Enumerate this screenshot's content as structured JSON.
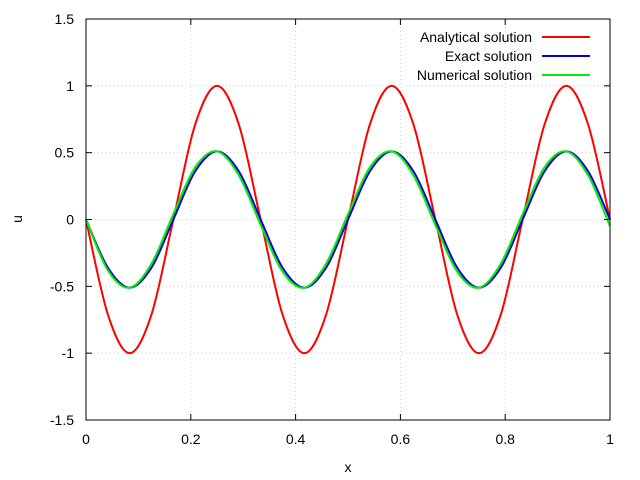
{
  "chart_data": {
    "type": "line",
    "title": "",
    "xlabel": "x",
    "ylabel": "u",
    "xlim": [
      0,
      1
    ],
    "ylim": [
      -1.5,
      1.5
    ],
    "xticks": [
      "0",
      "0.2",
      "0.4",
      "0.6",
      "0.8",
      "1"
    ],
    "yticks": [
      "-1.5",
      "-1",
      "-0.5",
      "0",
      "0.5",
      "1",
      "1.5"
    ],
    "grid": true,
    "legend_position": "top-right",
    "x": [
      0,
      0.0417,
      0.0833,
      0.125,
      0.1667,
      0.2083,
      0.25,
      0.2917,
      0.3333,
      0.375,
      0.4167,
      0.4583,
      0.5,
      0.5417,
      0.5833,
      0.625,
      0.6667,
      0.7083,
      0.75,
      0.7917,
      0.8333,
      0.875,
      0.9167,
      0.9583,
      1
    ],
    "series": [
      {
        "name": "Analytical solution",
        "color": "#ff0000",
        "values": [
          0,
          -0.71,
          -1,
          -0.71,
          0,
          0.71,
          1,
          0.71,
          0,
          -0.71,
          -1,
          -0.71,
          0,
          0.71,
          1,
          0.71,
          0,
          -0.71,
          -1,
          -0.71,
          0,
          0.71,
          1,
          0.71,
          0
        ]
      },
      {
        "name": "Exact solution",
        "color": "#0000dd",
        "values": [
          0,
          -0.36,
          -0.51,
          -0.36,
          0,
          0.36,
          0.51,
          0.36,
          0,
          -0.36,
          -0.51,
          -0.36,
          0,
          0.36,
          0.51,
          0.36,
          0,
          -0.36,
          -0.51,
          -0.36,
          0,
          0.36,
          0.51,
          0.36,
          0
        ]
      },
      {
        "name": "Numerical solution",
        "color": "#00ee00",
        "values": [
          0,
          -0.38,
          -0.51,
          -0.33,
          0.04,
          0.39,
          0.51,
          0.33,
          -0.04,
          -0.39,
          -0.51,
          -0.33,
          0.04,
          0.39,
          0.51,
          0.33,
          -0.04,
          -0.39,
          -0.51,
          -0.33,
          0.04,
          0.39,
          0.51,
          0.33,
          -0.05
        ]
      }
    ]
  }
}
